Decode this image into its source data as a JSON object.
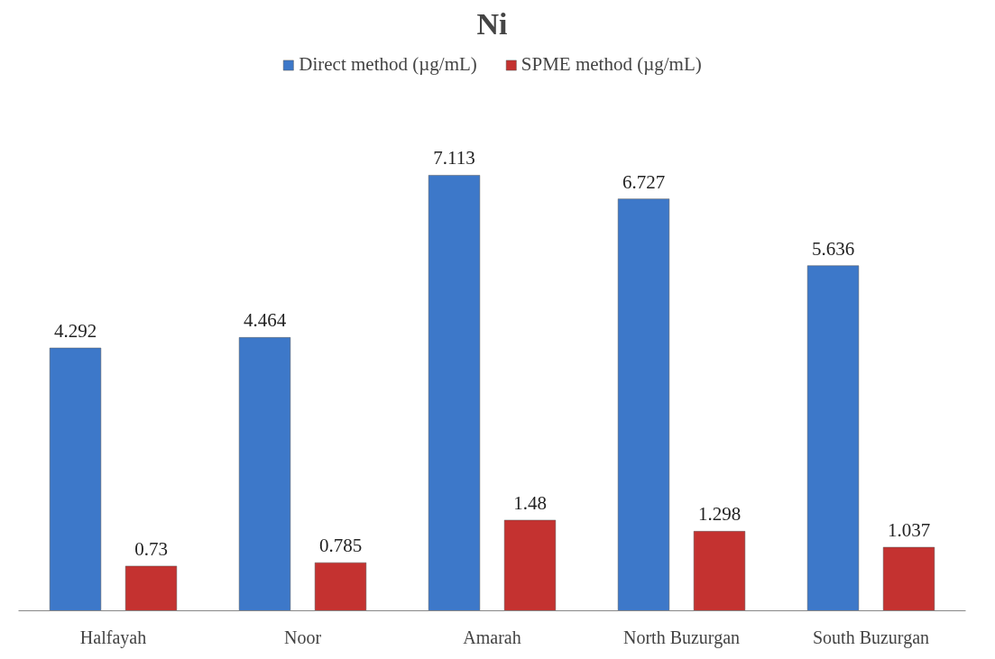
{
  "chart_data": {
    "type": "bar",
    "title": "Ni",
    "categories": [
      "Halfayah",
      "Noor",
      "Amarah",
      "North Buzurgan",
      "South Buzurgan"
    ],
    "series": [
      {
        "name": "Direct method (µg/mL)",
        "color": "#3d78c9",
        "values": [
          4.292,
          4.464,
          7.113,
          6.727,
          5.636
        ]
      },
      {
        "name": "SPME method (µg/mL)",
        "color": "#c43230",
        "values": [
          0.73,
          0.785,
          1.48,
          1.298,
          1.037
        ]
      }
    ],
    "data_labels": true,
    "legend": "top",
    "grid": false
  }
}
